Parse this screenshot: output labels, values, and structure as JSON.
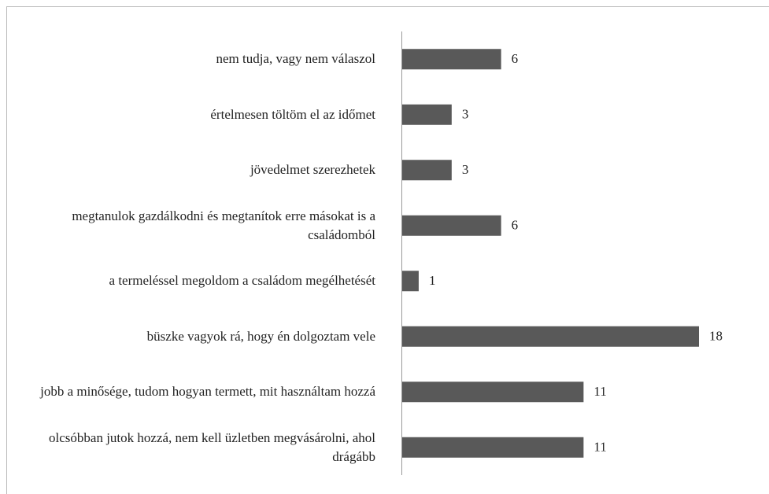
{
  "chart_data": {
    "type": "hbar",
    "categories": [
      "nem tudja, vagy nem válaszol",
      "értelmesen töltöm el az időmet",
      "jövedelmet szerezhetek",
      "megtanulok gazdálkodni és megtanítok erre másokat is a családomból",
      "a termeléssel megoldom a családom megélhetését",
      "büszke vagyok rá, hogy én dolgoztam vele",
      "jobb a minősége, tudom hogyan termett, mit használtam hozzá",
      "olcsóbban jutok hozzá, nem kell üzletben megvásárolni, ahol drágább"
    ],
    "values": [
      6,
      3,
      3,
      6,
      1,
      18,
      11,
      11
    ],
    "color": "#595959"
  }
}
